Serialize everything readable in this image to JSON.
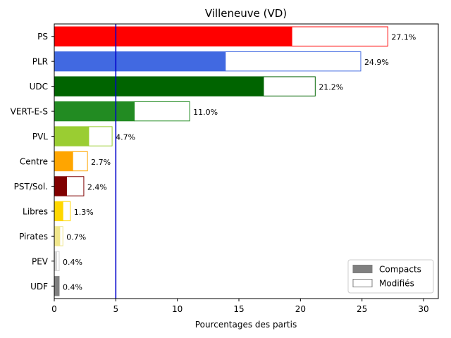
{
  "chart_data": {
    "type": "bar",
    "orientation": "horizontal",
    "stacked": true,
    "title": "Villeneuve (VD)",
    "xlabel": "Pourcentages des partis",
    "ylabel": "",
    "xlim": [
      0,
      31.2
    ],
    "xticks": [
      0,
      5,
      10,
      15,
      20,
      25,
      30
    ],
    "threshold_line": {
      "x": 5,
      "color": "#0000cc"
    },
    "categories": [
      "PS",
      "PLR",
      "UDC",
      "VERT-E-S",
      "PVL",
      "Centre",
      "PST/Sol.",
      "Libres",
      "Pirates",
      "PEV",
      "UDF"
    ],
    "colors": [
      "#ff0000",
      "#4169e1",
      "#006400",
      "#228b22",
      "#9acd32",
      "#ffa500",
      "#800000",
      "#ffd700",
      "#f0e68c",
      "#d3d3d3",
      "#808080"
    ],
    "series": [
      {
        "name": "Compacts",
        "fill": "solid",
        "values": [
          19.3,
          13.9,
          17.0,
          6.5,
          2.8,
          1.5,
          1.0,
          0.7,
          0.45,
          0.2,
          0.35
        ]
      },
      {
        "name": "Modifiés",
        "fill": "outline",
        "values": [
          7.8,
          11.0,
          4.2,
          4.5,
          1.9,
          1.2,
          1.4,
          0.6,
          0.25,
          0.2,
          0.05
        ]
      }
    ],
    "totals": [
      27.1,
      24.9,
      21.2,
      11.0,
      4.7,
      2.7,
      2.4,
      1.3,
      0.7,
      0.4,
      0.4
    ],
    "total_labels": [
      "27.1%",
      "24.9%",
      "21.2%",
      "11.0%",
      "4.7%",
      "2.7%",
      "2.4%",
      "1.3%",
      "0.7%",
      "0.4%",
      "0.4%"
    ],
    "legend": {
      "position": "lower-right",
      "entries": [
        {
          "label": "Compacts",
          "style": "solid",
          "color": "#808080"
        },
        {
          "label": "Modifiés",
          "style": "outline",
          "color": "#808080"
        }
      ]
    },
    "grid": false
  }
}
